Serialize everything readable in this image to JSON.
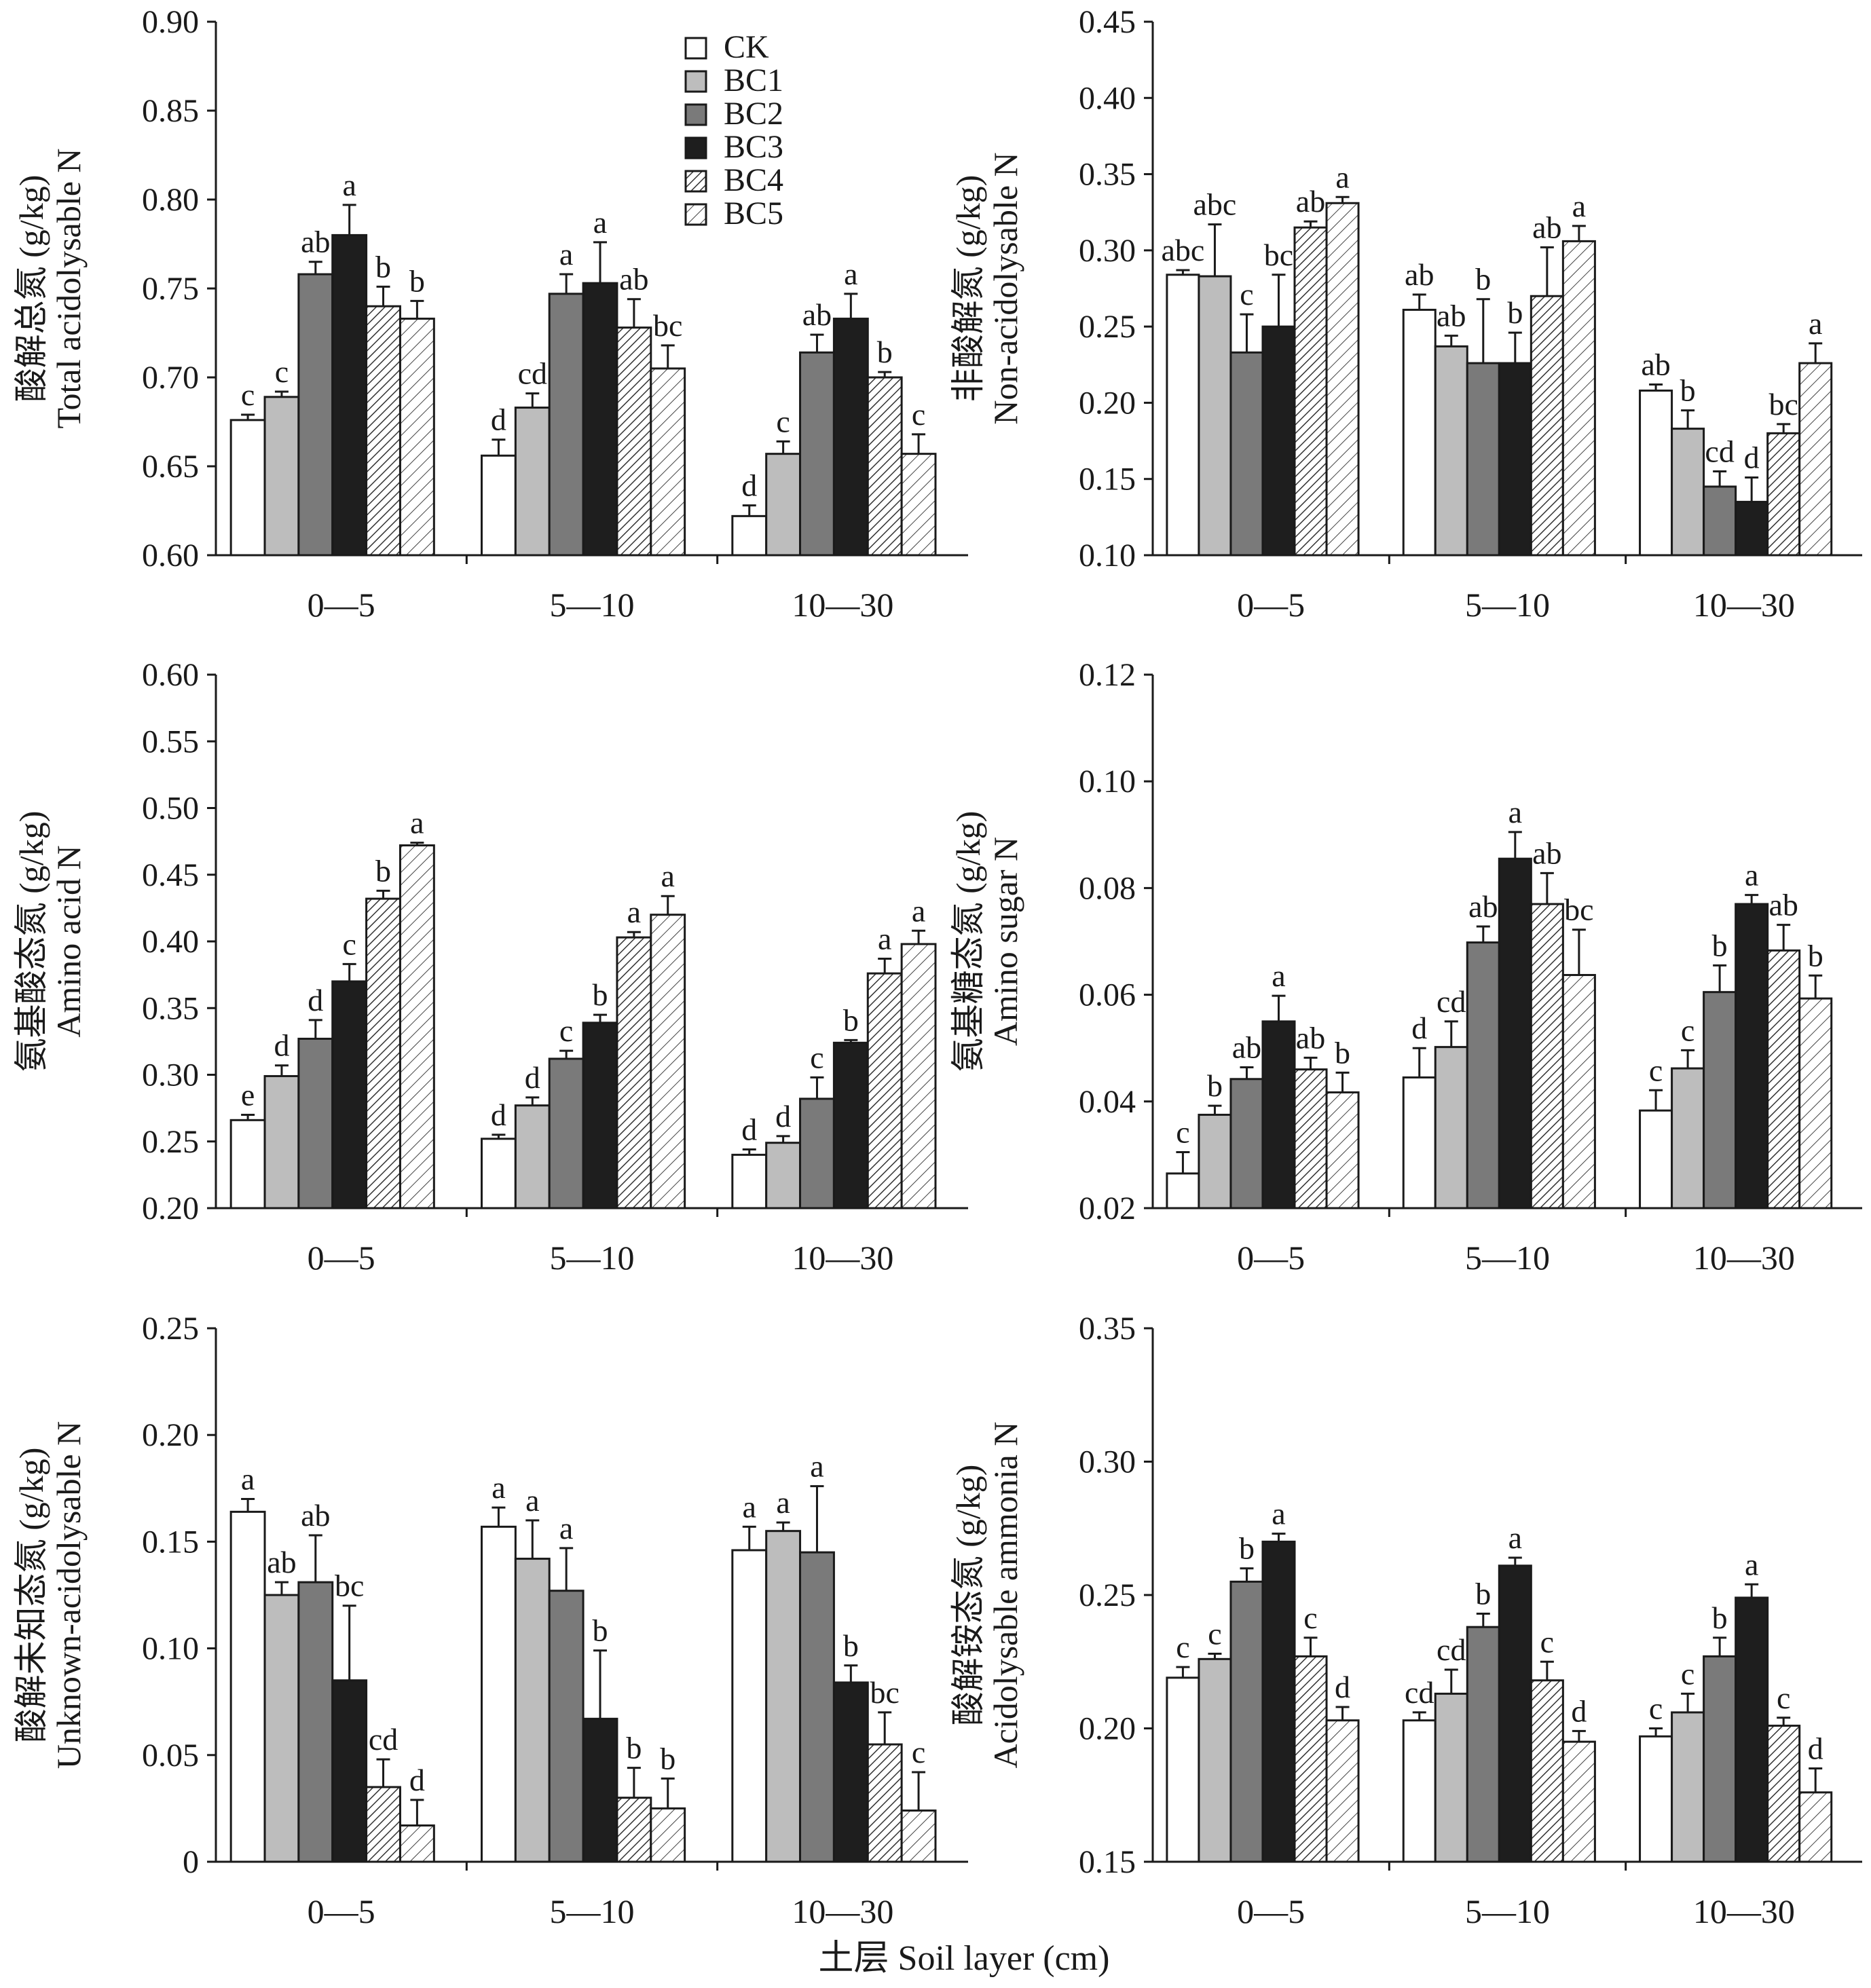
{
  "figure": {
    "xlabel": "土层 Soil layer (cm)",
    "legend": [
      {
        "name": "CK",
        "fill": "#ffffff",
        "pattern": "none"
      },
      {
        "name": "BC1",
        "fill": "#bdbdbd",
        "pattern": "none"
      },
      {
        "name": "BC2",
        "fill": "#7a7a7a",
        "pattern": "none"
      },
      {
        "name": "BC3",
        "fill": "#1e1e1e",
        "pattern": "none"
      },
      {
        "name": "BC4",
        "fill": "#ffffff",
        "pattern": "hatch-dense"
      },
      {
        "name": "BC5",
        "fill": "#ffffff",
        "pattern": "hatch-sparse"
      }
    ],
    "legend_panel": 0,
    "legend_placement": "top-center"
  },
  "chart_data": [
    {
      "type": "bar",
      "ylabel_cn": "酸解总氮 (g/kg)",
      "ylabel_en": "Total acidolysable N",
      "ylim": [
        0.6,
        0.9
      ],
      "yticks": [
        "0.60",
        "0.65",
        "0.70",
        "0.75",
        "0.80",
        "0.85",
        "0.90"
      ],
      "categories": [
        "0—5",
        "5—10",
        "10—30"
      ],
      "series": [
        {
          "name": "CK",
          "values": [
            0.676,
            0.656,
            0.622
          ],
          "errors": [
            0.003,
            0.009,
            0.006
          ],
          "letters": [
            "c",
            "d",
            "d"
          ]
        },
        {
          "name": "BC1",
          "values": [
            0.689,
            0.683,
            0.657
          ],
          "errors": [
            0.003,
            0.008,
            0.007
          ],
          "letters": [
            "c",
            "cd",
            "c"
          ]
        },
        {
          "name": "BC2",
          "values": [
            0.758,
            0.747,
            0.714
          ],
          "errors": [
            0.007,
            0.011,
            0.01
          ],
          "letters": [
            "ab",
            "a",
            "ab"
          ]
        },
        {
          "name": "BC3",
          "values": [
            0.78,
            0.753,
            0.733
          ],
          "errors": [
            0.017,
            0.023,
            0.014
          ],
          "letters": [
            "a",
            "a",
            "a"
          ]
        },
        {
          "name": "BC4",
          "values": [
            0.74,
            0.728,
            0.7
          ],
          "errors": [
            0.011,
            0.016,
            0.003
          ],
          "letters": [
            "b",
            "ab",
            "b"
          ]
        },
        {
          "name": "BC5",
          "values": [
            0.733,
            0.705,
            0.657
          ],
          "errors": [
            0.01,
            0.013,
            0.011
          ],
          "letters": [
            "b",
            "bc",
            "c"
          ]
        }
      ]
    },
    {
      "type": "bar",
      "ylabel_cn": "非酸解氮 (g/kg)",
      "ylabel_en": "Non-acidolysable N",
      "ylim": [
        0.1,
        0.45
      ],
      "yticks": [
        "0.10",
        "0.15",
        "0.20",
        "0.25",
        "0.30",
        "0.35",
        "0.40",
        "0.45"
      ],
      "categories": [
        "0—5",
        "5—10",
        "10—30"
      ],
      "series": [
        {
          "name": "CK",
          "values": [
            0.284,
            0.261,
            0.208
          ],
          "errors": [
            0.003,
            0.01,
            0.004
          ],
          "letters": [
            "abc",
            "ab",
            "ab"
          ]
        },
        {
          "name": "BC1",
          "values": [
            0.283,
            0.237,
            0.183
          ],
          "errors": [
            0.034,
            0.007,
            0.012
          ],
          "letters": [
            "abc",
            "ab",
            "b"
          ]
        },
        {
          "name": "BC2",
          "values": [
            0.233,
            0.226,
            0.145
          ],
          "errors": [
            0.025,
            0.042,
            0.01
          ],
          "letters": [
            "c",
            "b",
            "cd"
          ]
        },
        {
          "name": "BC3",
          "values": [
            0.25,
            0.226,
            0.135
          ],
          "errors": [
            0.034,
            0.02,
            0.016
          ],
          "letters": [
            "bc",
            "b",
            "d"
          ]
        },
        {
          "name": "BC4",
          "values": [
            0.315,
            0.27,
            0.18
          ],
          "errors": [
            0.004,
            0.032,
            0.006
          ],
          "letters": [
            "ab",
            "ab",
            "bc"
          ]
        },
        {
          "name": "BC5",
          "values": [
            0.331,
            0.306,
            0.226
          ],
          "errors": [
            0.004,
            0.01,
            0.013
          ],
          "letters": [
            "a",
            "a",
            "a"
          ]
        }
      ]
    },
    {
      "type": "bar",
      "ylabel_cn": "氨基酸态氮 (g/kg)",
      "ylabel_en": "Amino acid N",
      "ylim": [
        0.2,
        0.6
      ],
      "yticks": [
        "0.20",
        "0.25",
        "0.30",
        "0.35",
        "0.40",
        "0.45",
        "0.50",
        "0.55",
        "0.60"
      ],
      "categories": [
        "0—5",
        "5—10",
        "10—30"
      ],
      "series": [
        {
          "name": "CK",
          "values": [
            0.266,
            0.252,
            0.24
          ],
          "errors": [
            0.004,
            0.003,
            0.004
          ],
          "letters": [
            "e",
            "d",
            "d"
          ]
        },
        {
          "name": "BC1",
          "values": [
            0.299,
            0.277,
            0.249
          ],
          "errors": [
            0.008,
            0.006,
            0.005
          ],
          "letters": [
            "d",
            "d",
            "d"
          ]
        },
        {
          "name": "BC2",
          "values": [
            0.327,
            0.312,
            0.282
          ],
          "errors": [
            0.014,
            0.006,
            0.016
          ],
          "letters": [
            "d",
            "c",
            "c"
          ]
        },
        {
          "name": "BC3",
          "values": [
            0.37,
            0.339,
            0.324
          ],
          "errors": [
            0.013,
            0.006,
            0.002
          ],
          "letters": [
            "c",
            "b",
            "b"
          ]
        },
        {
          "name": "BC4",
          "values": [
            0.432,
            0.403,
            0.376
          ],
          "errors": [
            0.006,
            0.004,
            0.011
          ],
          "letters": [
            "b",
            "a",
            "a"
          ]
        },
        {
          "name": "BC5",
          "values": [
            0.472,
            0.42,
            0.398
          ],
          "errors": [
            0.002,
            0.014,
            0.01
          ],
          "letters": [
            "a",
            "a",
            "a"
          ]
        }
      ]
    },
    {
      "type": "bar",
      "ylabel_cn": "氨基糖态氮 (g/kg)",
      "ylabel_en": "Amino sugar N",
      "ylim": [
        0.02,
        0.12
      ],
      "yticks": [
        "0.02",
        "0.04",
        "0.06",
        "0.08",
        "0.10",
        "0.12"
      ],
      "categories": [
        "0—5",
        "5—10",
        "10—30"
      ],
      "series": [
        {
          "name": "CK",
          "values": [
            0.0265,
            0.0445,
            0.0383
          ],
          "errors": [
            0.004,
            0.0055,
            0.0038
          ],
          "letters": [
            "c",
            "d",
            "c"
          ]
        },
        {
          "name": "BC1",
          "values": [
            0.0375,
            0.0502,
            0.0462
          ],
          "errors": [
            0.0017,
            0.0048,
            0.0034
          ],
          "letters": [
            "b",
            "cd",
            "c"
          ]
        },
        {
          "name": "BC2",
          "values": [
            0.0442,
            0.0698,
            0.0605
          ],
          "errors": [
            0.0022,
            0.003,
            0.005
          ],
          "letters": [
            "ab",
            "ab",
            "b"
          ]
        },
        {
          "name": "BC3",
          "values": [
            0.055,
            0.0855,
            0.077
          ],
          "errors": [
            0.0048,
            0.005,
            0.0017
          ],
          "letters": [
            "a",
            "a",
            "a"
          ]
        },
        {
          "name": "BC4",
          "values": [
            0.046,
            0.077,
            0.0683
          ],
          "errors": [
            0.0022,
            0.0058,
            0.0048
          ],
          "letters": [
            "ab",
            "ab",
            "ab"
          ]
        },
        {
          "name": "BC5",
          "values": [
            0.0417,
            0.0637,
            0.0593
          ],
          "errors": [
            0.0037,
            0.0085,
            0.0043
          ],
          "letters": [
            "b",
            "bc",
            "b"
          ]
        }
      ]
    },
    {
      "type": "bar",
      "ylabel_cn": "酸解未知态氮 (g/kg)",
      "ylabel_en": "Unknown-acidolysable N",
      "ylim": [
        0,
        0.25
      ],
      "yticks": [
        "0",
        "0.05",
        "0.10",
        "0.15",
        "0.20",
        "0.25"
      ],
      "categories": [
        "0—5",
        "5—10",
        "10—30"
      ],
      "series": [
        {
          "name": "CK",
          "values": [
            0.164,
            0.157,
            0.146
          ],
          "errors": [
            0.006,
            0.009,
            0.011
          ],
          "letters": [
            "a",
            "a",
            "a"
          ]
        },
        {
          "name": "BC1",
          "values": [
            0.125,
            0.142,
            0.155
          ],
          "errors": [
            0.006,
            0.018,
            0.004
          ],
          "letters": [
            "ab",
            "a",
            "a"
          ]
        },
        {
          "name": "BC2",
          "values": [
            0.131,
            0.127,
            0.145
          ],
          "errors": [
            0.022,
            0.02,
            0.031
          ],
          "letters": [
            "ab",
            "a",
            "a"
          ]
        },
        {
          "name": "BC3",
          "values": [
            0.085,
            0.067,
            0.084
          ],
          "errors": [
            0.035,
            0.032,
            0.008
          ],
          "letters": [
            "bc",
            "b",
            "b"
          ]
        },
        {
          "name": "BC4",
          "values": [
            0.035,
            0.03,
            0.055
          ],
          "errors": [
            0.013,
            0.014,
            0.015
          ],
          "letters": [
            "cd",
            "b",
            "bc"
          ]
        },
        {
          "name": "BC5",
          "values": [
            0.017,
            0.025,
            0.024
          ],
          "errors": [
            0.012,
            0.014,
            0.018
          ],
          "letters": [
            "d",
            "b",
            "c"
          ]
        }
      ]
    },
    {
      "type": "bar",
      "ylabel_cn": "酸解铵态氮 (g/kg)",
      "ylabel_en": "Acidolysable ammonia N",
      "ylim": [
        0.15,
        0.35
      ],
      "yticks": [
        "0.15",
        "0.20",
        "0.25",
        "0.30",
        "0.35"
      ],
      "categories": [
        "0—5",
        "5—10",
        "10—30"
      ],
      "series": [
        {
          "name": "CK",
          "values": [
            0.219,
            0.203,
            0.197
          ],
          "errors": [
            0.004,
            0.003,
            0.003
          ],
          "letters": [
            "c",
            "cd",
            "c"
          ]
        },
        {
          "name": "BC1",
          "values": [
            0.226,
            0.213,
            0.206
          ],
          "errors": [
            0.002,
            0.009,
            0.007
          ],
          "letters": [
            "c",
            "cd",
            "c"
          ]
        },
        {
          "name": "BC2",
          "values": [
            0.255,
            0.238,
            0.227
          ],
          "errors": [
            0.005,
            0.005,
            0.007
          ],
          "letters": [
            "b",
            "b",
            "b"
          ]
        },
        {
          "name": "BC3",
          "values": [
            0.27,
            0.261,
            0.249
          ],
          "errors": [
            0.003,
            0.003,
            0.005
          ],
          "letters": [
            "a",
            "a",
            "a"
          ]
        },
        {
          "name": "BC4",
          "values": [
            0.227,
            0.218,
            0.201
          ],
          "errors": [
            0.007,
            0.007,
            0.003
          ],
          "letters": [
            "c",
            "c",
            "c"
          ]
        },
        {
          "name": "BC5",
          "values": [
            0.203,
            0.195,
            0.176
          ],
          "errors": [
            0.005,
            0.004,
            0.009
          ],
          "letters": [
            "d",
            "d",
            "d"
          ]
        }
      ]
    }
  ]
}
